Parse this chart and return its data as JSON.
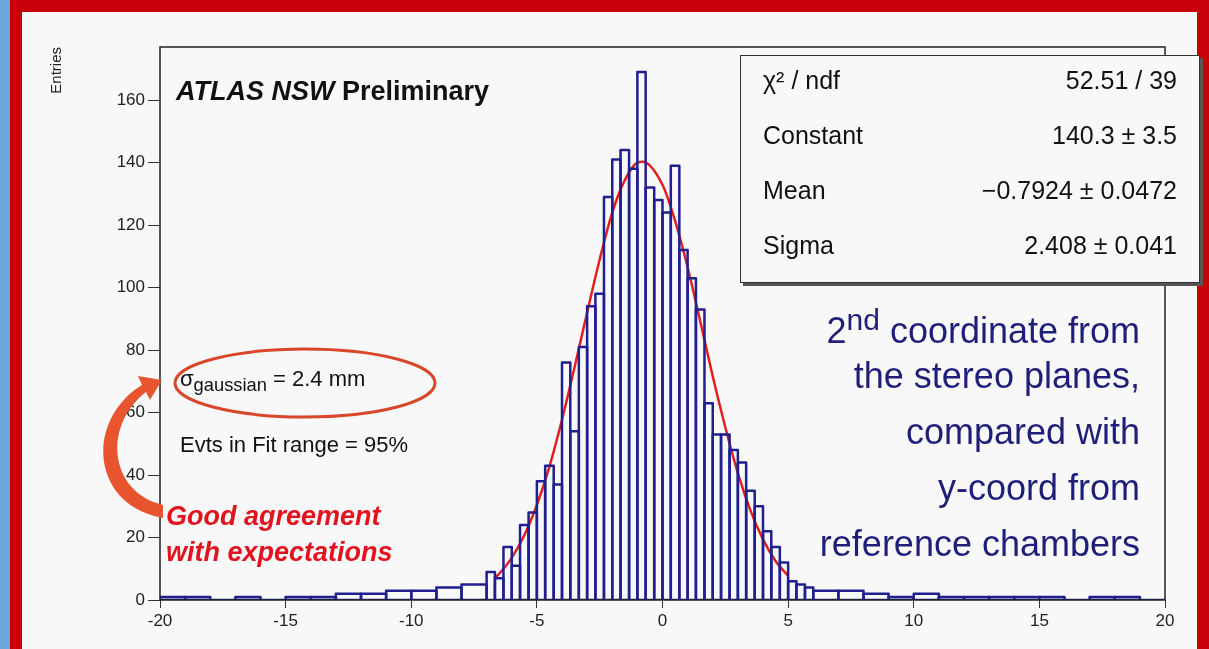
{
  "chart_data": {
    "type": "histogram",
    "ylabel": "Entries",
    "bins": [
      -20,
      -19,
      -18,
      -17,
      -16,
      -15,
      -14,
      -13,
      -12,
      -11,
      -10,
      -9,
      -8,
      -7,
      -6.67,
      -6.33,
      -6,
      -5.67,
      -5.33,
      -5,
      -4.67,
      -4.33,
      -4,
      -3.67,
      -3.33,
      -3,
      -2.67,
      -2.33,
      -2,
      -1.67,
      -1.33,
      -1,
      -0.67,
      -0.33,
      0,
      0.33,
      0.67,
      1,
      1.33,
      1.67,
      2,
      2.33,
      2.67,
      3,
      3.33,
      3.67,
      4,
      4.33,
      4.67,
      5,
      5.33,
      5.67,
      6,
      7,
      8,
      9,
      10,
      11,
      12,
      13,
      14,
      15,
      16,
      17,
      18,
      19,
      20
    ],
    "values": [
      1,
      1,
      0,
      1,
      0,
      1,
      1,
      2,
      2,
      3,
      3,
      4,
      5,
      9,
      7,
      17,
      11,
      24,
      28,
      38,
      43,
      37,
      76,
      54,
      81,
      94,
      98,
      129,
      141,
      144,
      138,
      169,
      132,
      128,
      124,
      139,
      112,
      103,
      93,
      63,
      53,
      53,
      48,
      44,
      35,
      30,
      22,
      17,
      12,
      6,
      5,
      4,
      3,
      3,
      2,
      1,
      2,
      1,
      1,
      1,
      1,
      1,
      0,
      1,
      1,
      0
    ],
    "color": "#1f1f8f",
    "series": [
      {
        "type": "line",
        "color": "#e0201e",
        "x": [
          -6.7,
          -6.5,
          -6,
          -5.5,
          -5,
          -4.5,
          -4,
          -3.5,
          -3,
          -2.5,
          -2,
          -1.5,
          -1,
          -0.79,
          0,
          0.5,
          1,
          1.5,
          2,
          2.5,
          3,
          3.5,
          4,
          4.5,
          5
        ],
        "values": [
          6.9,
          8.4,
          13.5,
          20.7,
          30.4,
          42.7,
          57.7,
          74.5,
          92,
          109,
          124,
          134.4,
          140,
          140.3,
          132.9,
          121.4,
          106.5,
          89.3,
          71.6,
          55.3,
          40.6,
          28.7,
          19.4,
          12.5,
          7.7
        ]
      }
    ],
    "xlim": [
      -20,
      20
    ],
    "xticks": [
      -20,
      -15,
      -10,
      -5,
      0,
      5,
      10,
      15,
      20
    ],
    "ylim": [
      0,
      177
    ],
    "yticks": [
      0,
      20,
      40,
      60,
      80,
      100,
      120,
      140,
      160
    ],
    "grid": false,
    "legend": false,
    "annotations": [
      "ATLAS NSW",
      "Preliminary",
      "χ² / ndf",
      "52.51 / 39",
      "Constant",
      "140.3 ± 3.5",
      "Mean",
      "−0.7924 ± 0.0472",
      "Sigma",
      "2.408 ± 0.041",
      "σ$_{gaussian}$ = 2.4 mm",
      "Evts in Fit range = 95%",
      "Good agreement with expectations",
      "2$^{nd}$ coordinate from",
      "the stereo planes,",
      "compared with",
      "y-coord from",
      "reference chambers"
    ]
  }
}
